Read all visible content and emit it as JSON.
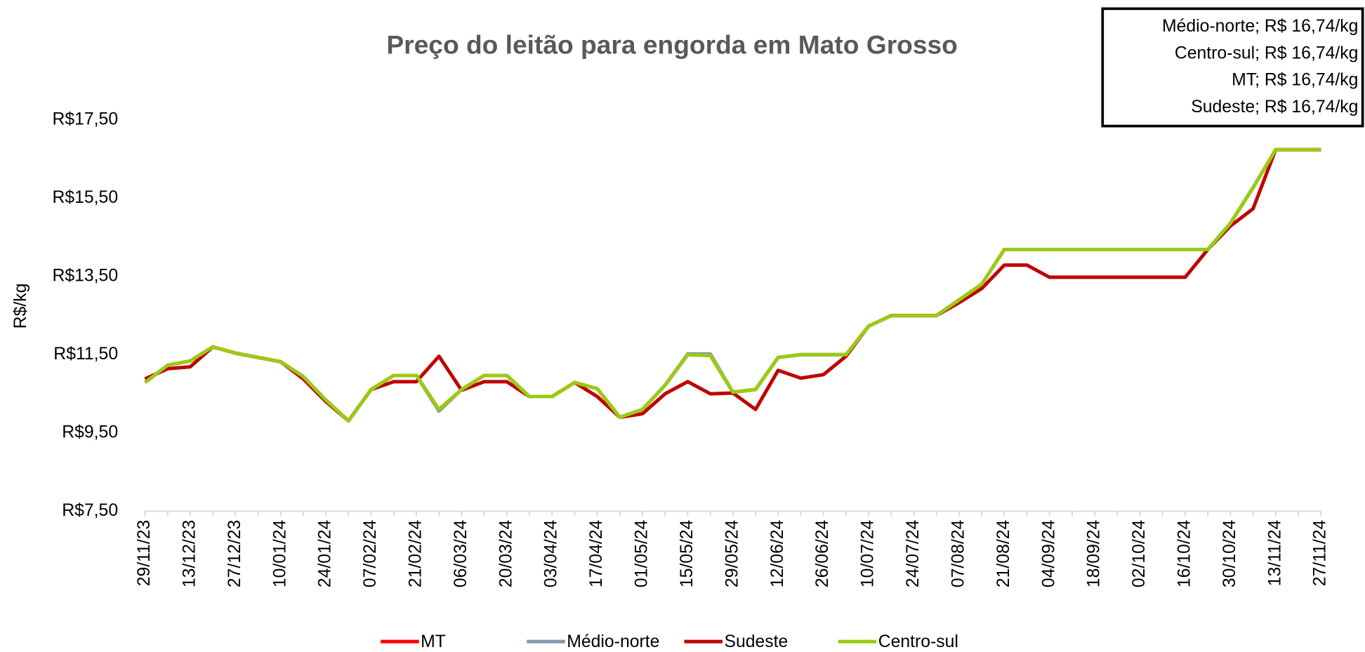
{
  "chart_data": {
    "type": "line",
    "title": "Preço do leitão para engorda em Mato Grosso",
    "y_label": "R$/kg",
    "annotations": [
      "Médio-norte; R$ 16,74/kg",
      "Centro-sul; R$ 16,74/kg",
      "MT; R$ 16,74/kg",
      "Sudeste; R$ 16,74/kg"
    ],
    "categories": [
      "29/11/23",
      null,
      "13/12/23",
      null,
      "27/12/23",
      null,
      "10/01/24",
      null,
      "24/01/24",
      null,
      "07/02/24",
      null,
      "21/02/24",
      null,
      "06/03/24",
      null,
      "20/03/24",
      null,
      "03/04/24",
      null,
      "17/04/24",
      null,
      "01/05/24",
      null,
      "15/05/24",
      null,
      "29/05/24",
      null,
      "12/06/24",
      null,
      "26/06/24",
      null,
      "10/07/24",
      null,
      "24/07/24",
      null,
      "07/08/24",
      null,
      "21/08/24",
      null,
      "04/09/24",
      null,
      "18/09/24",
      null,
      "02/10/24",
      null,
      "16/10/24",
      null,
      "30/10/24",
      null,
      "13/11/24",
      null,
      "27/11/24"
    ],
    "series": [
      {
        "name": "MT",
        "color": "#ff0000",
        "values": [
          10.79,
          11.23,
          11.34,
          11.7,
          11.54,
          11.43,
          11.32,
          10.94,
          10.34,
          9.81,
          10.61,
          10.97,
          10.97,
          10.1,
          10.61,
          10.97,
          10.97,
          10.43,
          10.43,
          10.79,
          10.63,
          9.9,
          10.1,
          10.72,
          11.5,
          11.48,
          10.54,
          10.61,
          11.43,
          11.5,
          11.5,
          11.5,
          12.23,
          12.5,
          12.5,
          12.5,
          12.9,
          13.3,
          14.19,
          14.19,
          14.19,
          14.19,
          14.19,
          14.19,
          14.19,
          14.19,
          14.19,
          14.19,
          14.86,
          15.77,
          16.74,
          16.74,
          16.74
        ]
      },
      {
        "name": "Médio-norte",
        "color": "#8497b0",
        "values": [
          10.79,
          11.23,
          11.34,
          11.7,
          11.54,
          11.43,
          11.32,
          10.94,
          10.34,
          9.81,
          10.61,
          10.97,
          10.97,
          10.06,
          10.61,
          10.97,
          10.97,
          10.43,
          10.43,
          10.79,
          10.63,
          9.9,
          10.1,
          10.72,
          11.52,
          11.52,
          10.54,
          10.61,
          11.43,
          11.5,
          11.5,
          11.5,
          12.23,
          12.5,
          12.5,
          12.5,
          12.9,
          13.3,
          14.19,
          14.19,
          14.19,
          14.19,
          14.19,
          14.19,
          14.19,
          14.19,
          14.19,
          14.19,
          14.86,
          15.77,
          16.74,
          16.74,
          16.74
        ]
      },
      {
        "name": "Sudeste",
        "color": "#c00000",
        "values": [
          10.88,
          11.14,
          11.19,
          11.7,
          11.54,
          11.43,
          11.32,
          10.88,
          10.3,
          9.81,
          10.61,
          10.81,
          10.81,
          11.46,
          10.59,
          10.81,
          10.81,
          10.43,
          10.43,
          10.79,
          10.43,
          9.9,
          9.99,
          10.5,
          10.81,
          10.5,
          10.52,
          10.1,
          11.1,
          10.9,
          10.99,
          11.46,
          12.23,
          12.5,
          12.5,
          12.5,
          12.83,
          13.19,
          13.79,
          13.79,
          13.48,
          13.48,
          13.48,
          13.48,
          13.48,
          13.48,
          13.48,
          14.19,
          14.79,
          15.23,
          16.74,
          16.74,
          16.74
        ]
      },
      {
        "name": "Centro-sul",
        "color": "#99cc11",
        "values": [
          10.79,
          11.23,
          11.34,
          11.7,
          11.54,
          11.43,
          11.32,
          10.94,
          10.34,
          9.81,
          10.61,
          10.97,
          10.97,
          10.1,
          10.61,
          10.97,
          10.97,
          10.43,
          10.43,
          10.79,
          10.63,
          9.9,
          10.1,
          10.72,
          11.5,
          11.48,
          10.54,
          10.61,
          11.43,
          11.5,
          11.5,
          11.5,
          12.23,
          12.5,
          12.5,
          12.5,
          12.9,
          13.3,
          14.19,
          14.19,
          14.19,
          14.19,
          14.19,
          14.19,
          14.19,
          14.19,
          14.19,
          14.19,
          14.86,
          15.77,
          16.74,
          16.74,
          16.74
        ]
      }
    ],
    "ylim": [
      7.5,
      17.5
    ],
    "yticks": [
      {
        "value": 7.5,
        "label": "R$7,50"
      },
      {
        "value": 9.5,
        "label": "R$9,50"
      },
      {
        "value": 11.5,
        "label": "R$11,50"
      },
      {
        "value": 13.5,
        "label": "R$13,50"
      },
      {
        "value": 15.5,
        "label": "R$15,50"
      },
      {
        "value": 17.5,
        "label": "R$17,50"
      }
    ],
    "grid": false,
    "legend": "bottom"
  }
}
